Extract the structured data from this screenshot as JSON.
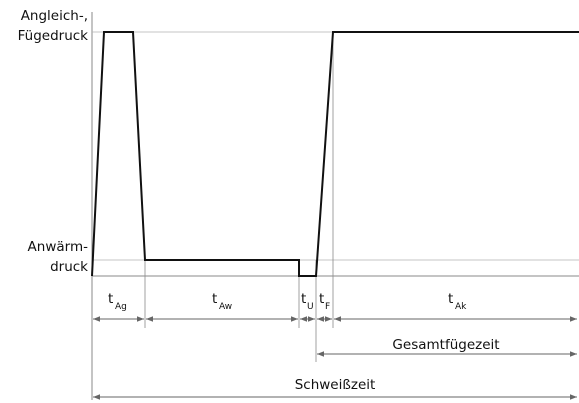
{
  "pressure_labels": {
    "high_line1": "Angleich-,",
    "high_line2": "Fügedruck",
    "low_line1": "Anwärm-",
    "low_line2": "druck"
  },
  "phases": [
    {
      "base": "t",
      "sub": "Ag"
    },
    {
      "base": "t",
      "sub": "Aw"
    },
    {
      "base": "t",
      "sub": "U"
    },
    {
      "base": "t",
      "sub": "F"
    },
    {
      "base": "t",
      "sub": "Ak"
    }
  ],
  "spans": {
    "gesamtfuegezeit": "Gesamtfügezeit",
    "schweisszeit": "Schweißzeit"
  },
  "colors": {
    "line": "#111111",
    "guide": "#8a8a8a",
    "arrow": "#666666"
  }
}
